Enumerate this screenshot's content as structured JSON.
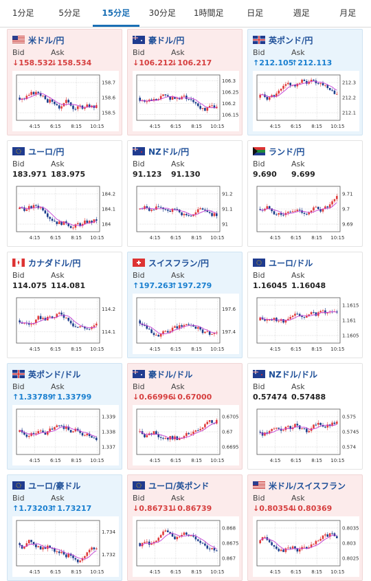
{
  "tabs": [
    "1分足",
    "5分足",
    "15分足",
    "30分足",
    "1時間足",
    "日足",
    "週足",
    "月足"
  ],
  "active_tab": "15分足",
  "labels": {
    "bid": "Bid",
    "ask": "Ask"
  },
  "x_ticks": [
    "4:15",
    "6:15",
    "8:15",
    "10:15"
  ],
  "colors": {
    "up_bg": "#e9f4fc",
    "down_bg": "#fcebeb",
    "up_arrow": "#1a7fcf",
    "down_arrow": "#d64040",
    "candle_up": "#e03a3a",
    "candle_down": "#1b3d8c",
    "ma_line": "#c23bd3"
  },
  "cards": [
    {
      "pair": "米ドル/円",
      "flag": "us-flag",
      "dir": "down",
      "bid": "↓158.532",
      "ask": "↓158.534",
      "y_ticks": [
        "158.7",
        "158.6",
        "158.5"
      ]
    },
    {
      "pair": "豪ドル/円",
      "flag": "au-flag",
      "dir": "down",
      "bid": "↓106.212",
      "ask": "↓106.217",
      "y_ticks": [
        "106.3",
        "106.25",
        "106.2",
        "106.15"
      ]
    },
    {
      "pair": "英ポンド/円",
      "flag": "gb-flag",
      "dir": "up",
      "bid": "↑212.105",
      "ask": "↑212.113",
      "y_ticks": [
        "212.3",
        "212.2",
        "212.1"
      ]
    },
    {
      "pair": "ユーロ/円",
      "flag": "eu-flag",
      "dir": "neutral",
      "bid": "183.971",
      "ask": "183.975",
      "y_ticks": [
        "184.2",
        "184.1",
        "184"
      ]
    },
    {
      "pair": "NZドル/円",
      "flag": "nz-flag",
      "dir": "neutral",
      "bid": "91.123",
      "ask": "91.130",
      "y_ticks": [
        "91.2",
        "91.1",
        "91"
      ]
    },
    {
      "pair": "ランド/円",
      "flag": "za-flag",
      "dir": "neutral",
      "bid": "9.690",
      "ask": "9.699",
      "y_ticks": [
        "9.71",
        "9.7",
        "9.69"
      ]
    },
    {
      "pair": "カナダドル/円",
      "flag": "ca-flag",
      "dir": "neutral",
      "bid": "114.075",
      "ask": "114.081",
      "y_ticks": [
        "114.2",
        "114.1"
      ]
    },
    {
      "pair": "スイスフラン/円",
      "flag": "ch-flag",
      "dir": "up",
      "bid": "↑197.263",
      "ask": "↑197.279",
      "y_ticks": [
        "197.6",
        "197.4"
      ]
    },
    {
      "pair": "ユーロ/ドル",
      "flag": "eu-flag",
      "dir": "neutral",
      "bid": "1.16045",
      "ask": "1.16048",
      "y_ticks": [
        "1.1615",
        "1.161",
        "1.1605"
      ]
    },
    {
      "pair": "英ポンド/ドル",
      "flag": "gb-flag",
      "dir": "up",
      "bid": "↑1.33789",
      "ask": "↑1.33799",
      "y_ticks": [
        "1.339",
        "1.338",
        "1.337"
      ]
    },
    {
      "pair": "豪ドル/ドル",
      "flag": "au-flag",
      "dir": "down",
      "bid": "↓0.66996",
      "ask": "↓0.67000",
      "y_ticks": [
        "0.6705",
        "0.67",
        "0.6695"
      ]
    },
    {
      "pair": "NZドル/ドル",
      "flag": "nz-flag",
      "dir": "neutral",
      "bid": "0.57474",
      "ask": "0.57488",
      "y_ticks": [
        "0.575",
        "0.5745",
        "0.574"
      ]
    },
    {
      "pair": "ユーロ/豪ドル",
      "flag": "eu-flag",
      "dir": "up",
      "bid": "↑1.73203",
      "ask": "↑1.73217",
      "y_ticks": [
        "1.734",
        "1.732"
      ]
    },
    {
      "pair": "ユーロ/英ポンド",
      "flag": "eu-flag",
      "dir": "down",
      "bid": "↓0.86731",
      "ask": "↓0.86739",
      "y_ticks": [
        "0.868",
        "0.8675",
        "0.867"
      ]
    },
    {
      "pair": "米ドル/スイスフラン",
      "flag": "us-flag",
      "dir": "down",
      "bid": "↓0.80354",
      "ask": "↓0.80369",
      "y_ticks": [
        "0.8035",
        "0.803",
        "0.8025"
      ]
    }
  ]
}
